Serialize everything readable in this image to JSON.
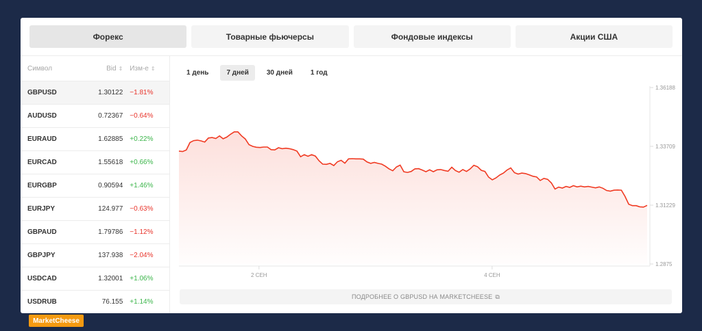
{
  "tabs": [
    "Форекс",
    "Товарные фьючерсы",
    "Фондовые индексы",
    "Акции США"
  ],
  "table": {
    "headers": {
      "symbol": "Символ",
      "bid": "Bid",
      "change": "Изм-е"
    },
    "sort_icon": "⇕",
    "rows": [
      {
        "symbol": "GBPUSD",
        "bid": "1.30122",
        "change": "−1.81%",
        "dir": "neg"
      },
      {
        "symbol": "AUDUSD",
        "bid": "0.72367",
        "change": "−0.64%",
        "dir": "neg"
      },
      {
        "symbol": "EURAUD",
        "bid": "1.62885",
        "change": "+0.22%",
        "dir": "pos"
      },
      {
        "symbol": "EURCAD",
        "bid": "1.55618",
        "change": "+0.66%",
        "dir": "pos"
      },
      {
        "symbol": "EURGBP",
        "bid": "0.90594",
        "change": "+1.46%",
        "dir": "pos"
      },
      {
        "symbol": "EURJPY",
        "bid": "124.977",
        "change": "−0.63%",
        "dir": "neg"
      },
      {
        "symbol": "GBPAUD",
        "bid": "1.79786",
        "change": "−1.12%",
        "dir": "neg"
      },
      {
        "symbol": "GBPJPY",
        "bid": "137.938",
        "change": "−2.04%",
        "dir": "neg"
      },
      {
        "symbol": "USDCAD",
        "bid": "1.32001",
        "change": "+1.06%",
        "dir": "pos"
      },
      {
        "symbol": "USDRUB",
        "bid": "76.155",
        "change": "+1.14%",
        "dir": "pos"
      }
    ]
  },
  "periods": [
    "1 день",
    "7 дней",
    "30 дней",
    "1 год"
  ],
  "more_link": "ПОДРОБНЕЕ О GBPUSD НА MARKETCHEESE",
  "external_icon": "⧉",
  "logo_text": "MarketCheese",
  "colors": {
    "negative": "#e8332a",
    "positive": "#3bb54a",
    "line": "#f03a22",
    "logo": "#f59a11",
    "background": "#1c2a48"
  },
  "chart_data": {
    "type": "area",
    "series": [
      {
        "values": [
          1.3351,
          1.3349,
          1.3356,
          1.3387,
          1.3395,
          1.3397,
          1.3394,
          1.3389,
          1.3406,
          1.3408,
          1.3404,
          1.3415,
          1.3403,
          1.341,
          1.3422,
          1.3432,
          1.3432,
          1.3415,
          1.3402,
          1.3378,
          1.3371,
          1.3367,
          1.3366,
          1.3368,
          1.3368,
          1.3357,
          1.3356,
          1.3365,
          1.3361,
          1.3363,
          1.3361,
          1.3357,
          1.3351,
          1.3327,
          1.3336,
          1.3329,
          1.3336,
          1.333,
          1.331,
          1.3296,
          1.3295,
          1.3299,
          1.329,
          1.3306,
          1.3312,
          1.33,
          1.3318,
          1.3319,
          1.3318,
          1.3318,
          1.3317,
          1.3305,
          1.3299,
          1.3303,
          1.3299,
          1.3296,
          1.3287,
          1.3276,
          1.3268,
          1.3284,
          1.3292,
          1.3264,
          1.3261,
          1.3265,
          1.3276,
          1.3277,
          1.3271,
          1.3264,
          1.3272,
          1.3264,
          1.3272,
          1.3273,
          1.3269,
          1.3266,
          1.3283,
          1.3269,
          1.3262,
          1.3273,
          1.3265,
          1.3276,
          1.3291,
          1.3285,
          1.327,
          1.3265,
          1.3241,
          1.323,
          1.3238,
          1.325,
          1.3258,
          1.3271,
          1.328,
          1.326,
          1.3254,
          1.3258,
          1.3256,
          1.3251,
          1.3245,
          1.3242,
          1.3227,
          1.3236,
          1.3232,
          1.3217,
          1.3191,
          1.3199,
          1.3195,
          1.3202,
          1.3198,
          1.3205,
          1.32,
          1.3203,
          1.32,
          1.3202,
          1.3199,
          1.3196,
          1.32,
          1.3194,
          1.3185,
          1.3182,
          1.3186,
          1.3187,
          1.3186,
          1.316,
          1.3127,
          1.3121,
          1.3121,
          1.3116,
          1.3115,
          1.3122
        ]
      }
    ],
    "y_ticks": [
      "1.36188",
      "1.33709",
      "1.31229",
      "1.2875"
    ],
    "y_tick_values": [
      1.36188,
      1.33709,
      1.31229,
      1.2875
    ],
    "ylim": [
      1.2875,
      1.36188
    ],
    "x_ticks": [
      "2 СЕН",
      "4 СЕН"
    ],
    "x_tick_fraction": [
      0.17,
      0.665
    ],
    "grid": false
  }
}
